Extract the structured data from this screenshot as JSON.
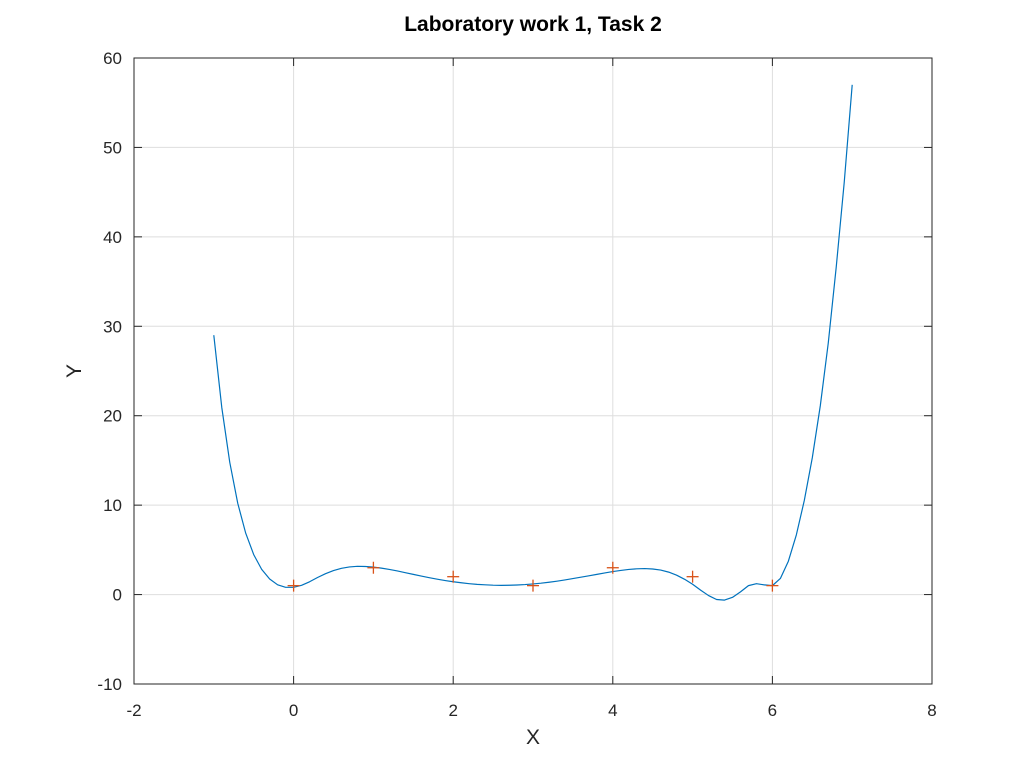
{
  "chart_data": {
    "type": "line",
    "title": "Laboratory work 1, Task 2",
    "xlabel": "X",
    "ylabel": "Y",
    "xlim": [
      -2,
      8
    ],
    "ylim": [
      -10,
      60
    ],
    "xticks": [
      "-2",
      "0",
      "2",
      "4",
      "6",
      "8"
    ],
    "yticks": [
      "-10",
      "0",
      "10",
      "20",
      "30",
      "40",
      "50",
      "60"
    ],
    "grid": true,
    "series": [
      {
        "kind": "line",
        "color": "#0072bd",
        "x": [
          -1.0,
          -0.9,
          -0.8,
          -0.7,
          -0.6,
          -0.5,
          -0.4,
          -0.3,
          -0.2,
          -0.1,
          0.0,
          0.1,
          0.2,
          0.3,
          0.4,
          0.5,
          0.6,
          0.7,
          0.8,
          0.9,
          1.0,
          1.1,
          1.2,
          1.3,
          1.4,
          1.5,
          1.6,
          1.7,
          1.8,
          1.9,
          2.0,
          2.1,
          2.2,
          2.3,
          2.4,
          2.5,
          2.6,
          2.7,
          2.8,
          2.9,
          3.0,
          3.1,
          3.2,
          3.3,
          3.4,
          3.5,
          3.6,
          3.7,
          3.8,
          3.9,
          4.0,
          4.1,
          4.2,
          4.3,
          4.4,
          4.5,
          4.6,
          4.7,
          4.8,
          4.9,
          5.0,
          5.1,
          5.2,
          5.3,
          5.4,
          5.5,
          5.6,
          5.7,
          5.8,
          5.9,
          6.0,
          6.1,
          6.2,
          6.3,
          6.4,
          6.5,
          6.6,
          6.7,
          6.8,
          6.9,
          7.0
        ],
        "y": [
          29.0,
          20.92,
          14.79,
          10.21,
          6.86,
          4.47,
          2.82,
          1.74,
          1.09,
          0.81,
          0.81,
          1.04,
          1.43,
          1.91,
          2.34,
          2.69,
          2.94,
          3.09,
          3.16,
          3.14,
          3.07,
          2.96,
          2.81,
          2.64,
          2.45,
          2.26,
          2.07,
          1.89,
          1.72,
          1.57,
          1.43,
          1.32,
          1.22,
          1.14,
          1.09,
          1.05,
          1.03,
          1.04,
          1.07,
          1.12,
          1.19,
          1.27,
          1.38,
          1.5,
          1.64,
          1.79,
          1.94,
          2.1,
          2.26,
          2.42,
          2.57,
          2.7,
          2.81,
          2.88,
          2.91,
          2.86,
          2.74,
          2.51,
          2.17,
          1.71,
          1.15,
          0.5,
          -0.11,
          -0.55,
          -0.62,
          -0.31,
          0.3,
          1.0,
          1.22,
          1.08,
          1.0,
          1.8,
          3.73,
          6.67,
          10.53,
          15.3,
          21.1,
          28.12,
          36.64,
          46.09,
          57.0
        ]
      },
      {
        "kind": "markers",
        "marker": "+",
        "color": "#d95319",
        "x": [
          0,
          1,
          2,
          3,
          4,
          5,
          6
        ],
        "y": [
          1,
          3,
          2,
          1,
          3,
          2,
          1
        ]
      }
    ]
  }
}
